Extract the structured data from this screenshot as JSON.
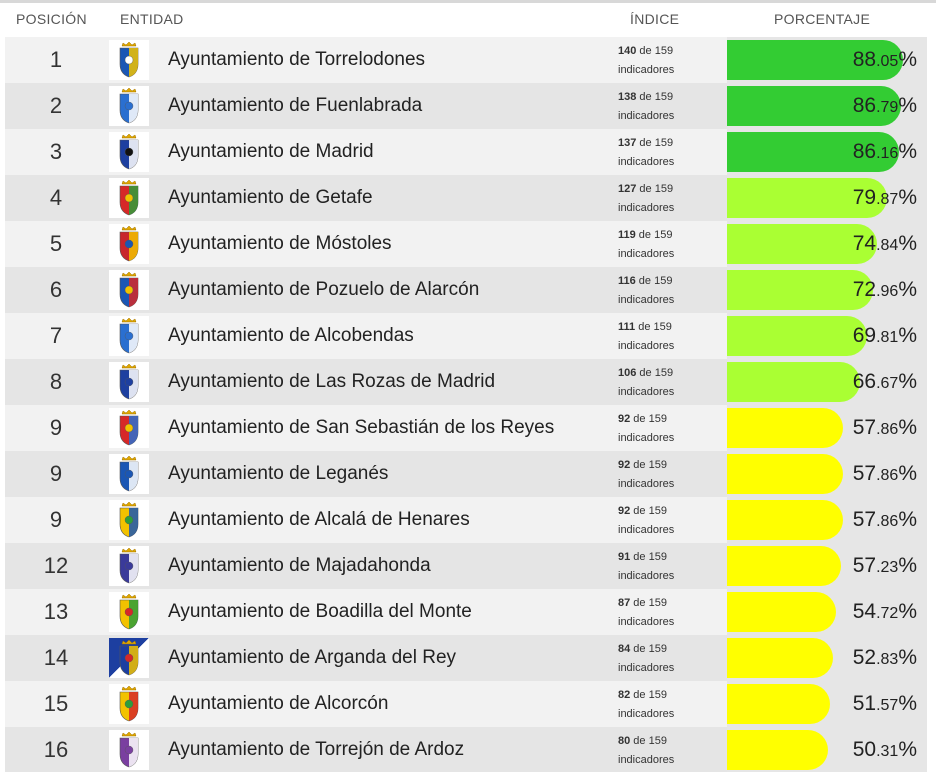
{
  "header": {
    "position": "POSICIÓN",
    "entity": "ENTIDAD",
    "index": "ÍNDICE",
    "percentage": "PORCENTAJE"
  },
  "colors": {
    "high": "#33cc33",
    "medium": "#aaff33",
    "low": "#ffff00"
  },
  "rows": [
    {
      "position": "1",
      "entity": "Ayuntamiento de Torrelodones",
      "count": "140",
      "total_text": " de 159",
      "indicators": "indicadores",
      "pct_int": "88",
      "pct_dec": ".05",
      "pct_sign": "%",
      "value": 88.05,
      "tier": "high",
      "logo_icon": "torrelodones-coat-of-arms-icon"
    },
    {
      "position": "2",
      "entity": "Ayuntamiento de Fuenlabrada",
      "count": "138",
      "total_text": " de 159",
      "indicators": "indicadores",
      "pct_int": "86",
      "pct_dec": ".79",
      "pct_sign": "%",
      "value": 86.79,
      "tier": "high",
      "logo_icon": "fuenlabrada-coat-of-arms-icon"
    },
    {
      "position": "3",
      "entity": "Ayuntamiento de Madrid",
      "count": "137",
      "total_text": " de 159",
      "indicators": "indicadores",
      "pct_int": "86",
      "pct_dec": ".16",
      "pct_sign": "%",
      "value": 86.16,
      "tier": "high",
      "logo_icon": "madrid-coat-of-arms-icon"
    },
    {
      "position": "4",
      "entity": "Ayuntamiento de Getafe",
      "count": "127",
      "total_text": " de 159",
      "indicators": "indicadores",
      "pct_int": "79",
      "pct_dec": ".87",
      "pct_sign": "%",
      "value": 79.87,
      "tier": "medium",
      "logo_icon": "getafe-coat-of-arms-icon"
    },
    {
      "position": "5",
      "entity": "Ayuntamiento de Móstoles",
      "count": "119",
      "total_text": " de 159",
      "indicators": "indicadores",
      "pct_int": "74",
      "pct_dec": ".84",
      "pct_sign": "%",
      "value": 74.84,
      "tier": "medium",
      "logo_icon": "mostoles-coat-of-arms-icon"
    },
    {
      "position": "6",
      "entity": "Ayuntamiento de Pozuelo de Alarcón",
      "count": "116",
      "total_text": " de 159",
      "indicators": "indicadores",
      "pct_int": "72",
      "pct_dec": ".96",
      "pct_sign": "%",
      "value": 72.96,
      "tier": "medium",
      "logo_icon": "pozuelo-coat-of-arms-icon"
    },
    {
      "position": "7",
      "entity": "Ayuntamiento de Alcobendas",
      "count": "111",
      "total_text": " de 159",
      "indicators": "indicadores",
      "pct_int": "69",
      "pct_dec": ".81",
      "pct_sign": "%",
      "value": 69.81,
      "tier": "medium",
      "logo_icon": "alcobendas-coat-of-arms-icon"
    },
    {
      "position": "8",
      "entity": "Ayuntamiento de Las Rozas de Madrid",
      "count": "106",
      "total_text": " de 159",
      "indicators": "indicadores",
      "pct_int": "66",
      "pct_dec": ".67",
      "pct_sign": "%",
      "value": 66.67,
      "tier": "medium",
      "logo_icon": "las-rozas-logo-icon"
    },
    {
      "position": "9",
      "entity": "Ayuntamiento de San Sebastián de los Reyes",
      "count": "92",
      "total_text": " de 159",
      "indicators": "indicadores",
      "pct_int": "57",
      "pct_dec": ".86",
      "pct_sign": "%",
      "value": 57.86,
      "tier": "low",
      "logo_icon": "san-sebastian-coat-of-arms-icon"
    },
    {
      "position": "9",
      "entity": "Ayuntamiento de Leganés",
      "count": "92",
      "total_text": " de 159",
      "indicators": "indicadores",
      "pct_int": "57",
      "pct_dec": ".86",
      "pct_sign": "%",
      "value": 57.86,
      "tier": "low",
      "logo_icon": "leganes-coat-of-arms-icon"
    },
    {
      "position": "9",
      "entity": "Ayuntamiento de Alcalá de Henares",
      "count": "92",
      "total_text": " de 159",
      "indicators": "indicadores",
      "pct_int": "57",
      "pct_dec": ".86",
      "pct_sign": "%",
      "value": 57.86,
      "tier": "low",
      "logo_icon": "alcala-coat-of-arms-icon"
    },
    {
      "position": "12",
      "entity": "Ayuntamiento de Majadahonda",
      "count": "91",
      "total_text": " de 159",
      "indicators": "indicadores",
      "pct_int": "57",
      "pct_dec": ".23",
      "pct_sign": "%",
      "value": 57.23,
      "tier": "low",
      "logo_icon": "majadahonda-logo-icon"
    },
    {
      "position": "13",
      "entity": "Ayuntamiento de Boadilla del Monte",
      "count": "87",
      "total_text": " de 159",
      "indicators": "indicadores",
      "pct_int": "54",
      "pct_dec": ".72",
      "pct_sign": "%",
      "value": 54.72,
      "tier": "low",
      "logo_icon": "boadilla-coat-of-arms-icon"
    },
    {
      "position": "14",
      "entity": "Ayuntamiento de Arganda del Rey",
      "count": "84",
      "total_text": " de 159",
      "indicators": "indicadores",
      "pct_int": "52",
      "pct_dec": ".83",
      "pct_sign": "%",
      "value": 52.83,
      "tier": "low",
      "logo_icon": "arganda-logo-icon"
    },
    {
      "position": "15",
      "entity": "Ayuntamiento de Alcorcón",
      "count": "82",
      "total_text": " de 159",
      "indicators": "indicadores",
      "pct_int": "51",
      "pct_dec": ".57",
      "pct_sign": "%",
      "value": 51.57,
      "tier": "low",
      "logo_icon": "alcorcon-coat-of-arms-icon"
    },
    {
      "position": "16",
      "entity": "Ayuntamiento de Torrejón de Ardoz",
      "count": "80",
      "total_text": " de 159",
      "indicators": "indicadores",
      "pct_int": "50",
      "pct_dec": ".31",
      "pct_sign": "%",
      "value": 50.31,
      "tier": "low",
      "logo_icon": "torrejon-coat-of-arms-icon"
    }
  ]
}
